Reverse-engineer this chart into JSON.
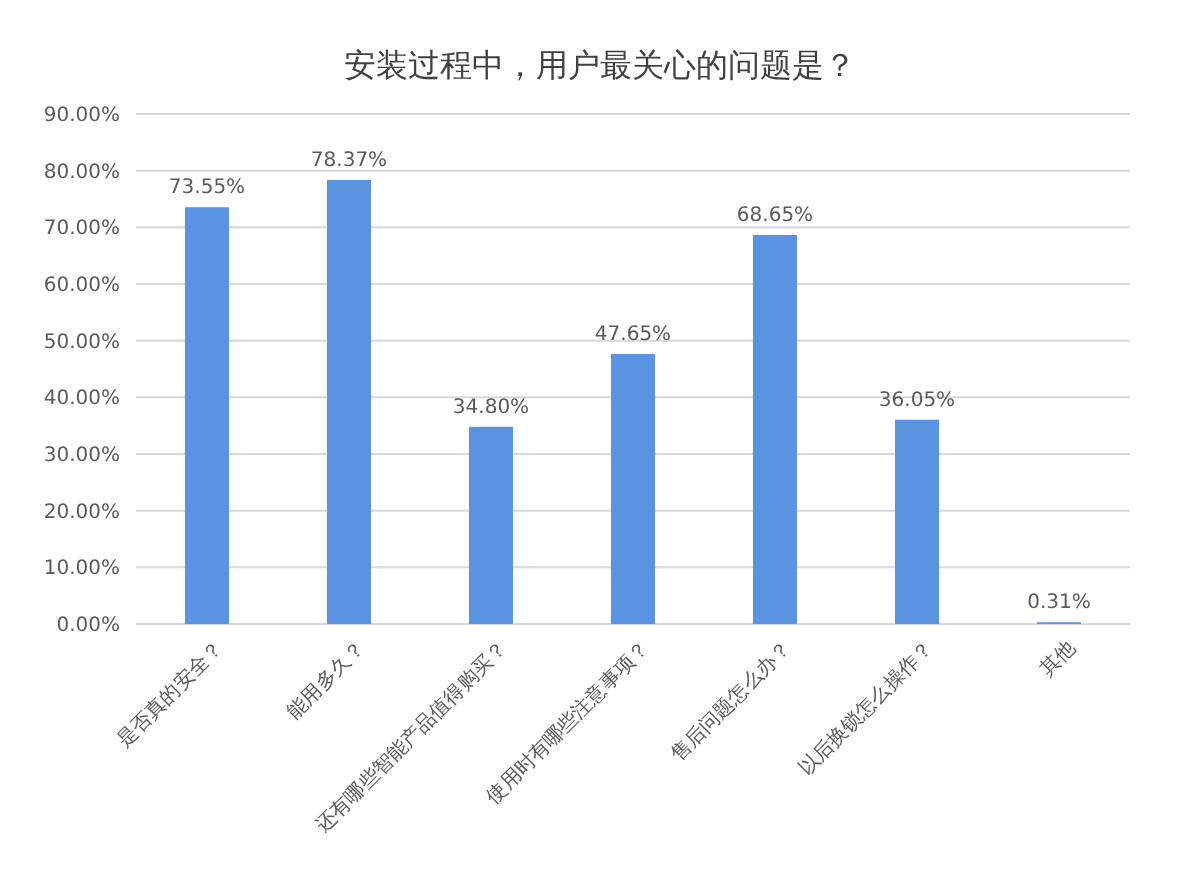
{
  "chart_data": {
    "type": "bar",
    "title": "安装过程中，用户最关心的问题是？",
    "categories": [
      "是否真的安全？",
      "能用多久？",
      "还有哪些智能产品值得购买？",
      "使用时有哪些注意事项？",
      "售后问题怎么办？",
      "以后换锁怎么操作？",
      "其他"
    ],
    "values": [
      73.55,
      78.37,
      34.8,
      47.65,
      68.65,
      36.05,
      0.31
    ],
    "value_labels": [
      "73.55%",
      "78.37%",
      "34.80%",
      "47.65%",
      "68.65%",
      "36.05%",
      "0.31%"
    ],
    "color": "#5b93e3",
    "ylim": [
      0,
      90
    ],
    "yticks": [
      {
        "value": 0,
        "label": "0.00%"
      },
      {
        "value": 10,
        "label": "10.00%"
      },
      {
        "value": 20,
        "label": "20.00%"
      },
      {
        "value": 30,
        "label": "30.00%"
      },
      {
        "value": 40,
        "label": "40.00%"
      },
      {
        "value": 50,
        "label": "50.00%"
      },
      {
        "value": 60,
        "label": "60.00%"
      },
      {
        "value": 70,
        "label": "70.00%"
      },
      {
        "value": 80,
        "label": "80.00%"
      },
      {
        "value": 90,
        "label": "90.00%"
      }
    ],
    "grid": "y"
  }
}
